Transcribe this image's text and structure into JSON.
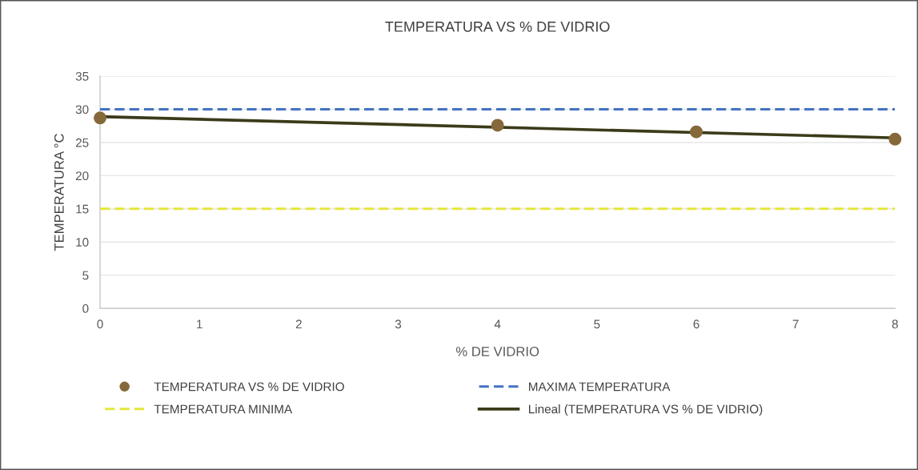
{
  "chart_data": {
    "type": "scatter",
    "title": "TEMPERATURA VS % DE VIDRIO",
    "xlabel": "% DE VIDRIO",
    "ylabel": "TEMPERATURA °C",
    "x": [
      0,
      4,
      6,
      8
    ],
    "series": [
      {
        "name": "TEMPERATURA VS % DE VIDRIO",
        "color": "#86693a",
        "values": [
          28.7,
          27.6,
          26.6,
          25.5
        ],
        "marker": "circle"
      },
      {
        "name": "Lineal (TEMPERATURA VS % DE VIDRIO)",
        "type": "line",
        "color": "#3b3b1a",
        "x": [
          0,
          8
        ],
        "values": [
          28.9,
          25.7
        ],
        "line_style": "solid"
      }
    ],
    "ref_lines": [
      {
        "axis": "y",
        "value": 30,
        "label": "MAXIMA TEMPERATURA",
        "color": "#4472c4",
        "line_style": "dashed"
      },
      {
        "axis": "y",
        "value": 15,
        "label": "TEMPERATURA MINIMA",
        "color": "#e6e63c",
        "line_style": "dashed"
      }
    ],
    "xlim": [
      0,
      8
    ],
    "ylim": [
      0,
      35
    ],
    "xticks": [
      0,
      1,
      2,
      3,
      4,
      5,
      6,
      7,
      8
    ],
    "yticks": [
      0,
      5,
      10,
      15,
      20,
      25,
      30,
      35
    ],
    "grid": "y",
    "legend": "bottom"
  }
}
